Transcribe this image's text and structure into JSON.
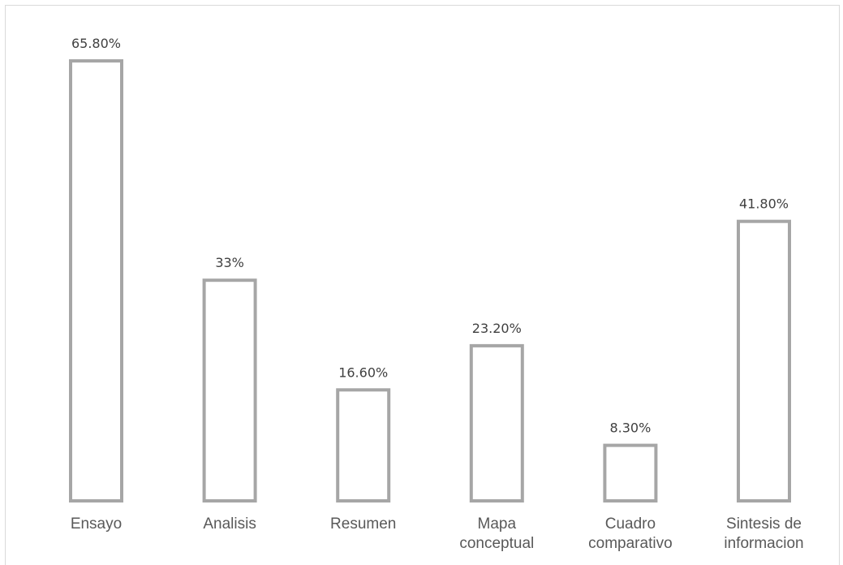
{
  "chart_data": {
    "type": "bar",
    "categories": [
      [
        "Ensayo"
      ],
      [
        "Analisis"
      ],
      [
        "Resumen"
      ],
      [
        "Mapa",
        "conceptual"
      ],
      [
        "Cuadro",
        "comparativo"
      ],
      [
        "Sintesis de",
        "informacion"
      ]
    ],
    "values": [
      65.8,
      33,
      16.6,
      23.2,
      8.3,
      41.8
    ],
    "data_labels": [
      "65.80%",
      "33%",
      "16.60%",
      "23.20%",
      "8.30%",
      "41.80%"
    ],
    "title": "",
    "xlabel": "",
    "ylabel": "",
    "ylim": [
      0,
      65.8
    ],
    "grid": false,
    "legend": "none",
    "colors": {
      "bar_fill": "#ffffff",
      "bar_outline": "#a6a6a6",
      "data_label": "#404040",
      "category_label": "#595959",
      "frame": "#d9d9d9"
    }
  }
}
